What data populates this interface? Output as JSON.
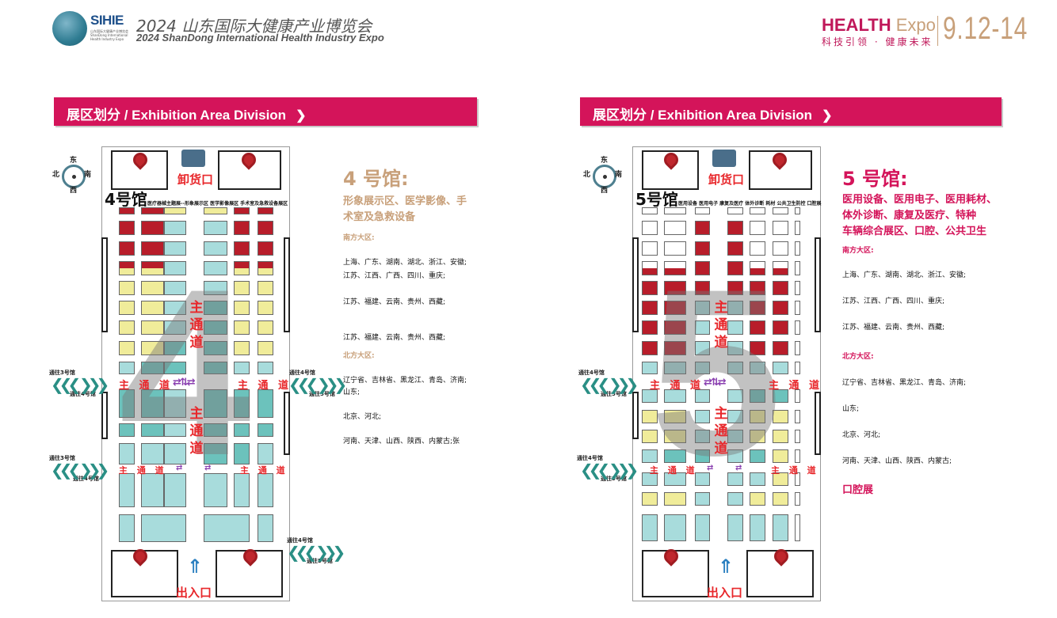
{
  "header": {
    "logo_text": "SIHIE",
    "logo_subtext": "山东国际大健康产业博览会 ShanDong International Health Industry Expo",
    "title_cn": "2024 山东国际大健康产业博览会",
    "title_en": "2024 ShanDong International Health Industry Expo",
    "brand_main": "HEALTH",
    "brand_expo": "Expo",
    "slogan": "科技引领 · 健康未来",
    "dates": "9.12-14"
  },
  "colors": {
    "accent": "#d4145a",
    "gold": "#c8a07a",
    "booth_red": "#b81d2a",
    "booth_yellow": "#f0ec9a",
    "booth_teal": "#a8dcdc",
    "booth_teal_dark": "#6cc2bc",
    "aisle_red": "#e8272b",
    "nav_green": "#2a8f85"
  },
  "banner": {
    "label": "展区划分 / Exhibition Area Division",
    "chevron_icon": "chevron-right-icon"
  },
  "compass": {
    "east": "东",
    "south": "南",
    "west": "西",
    "north": "北"
  },
  "labels": {
    "unloading": "卸货口",
    "entrance": "出入口",
    "main_aisle": "主通道",
    "main_aisle_spaced": "主 通 道",
    "to_hall3": "通往3号馆",
    "to_hall4": "通往4号馆",
    "to_hall5": "通往5号馆"
  },
  "hall4": {
    "plan_label": "4号馆",
    "numeral": "4",
    "zone_bar": "医疗器械主题展--形象展示区  医学影像展区  手术室及急救设备展区",
    "title": "4 号馆:",
    "subtitle_lines": [
      "形象展示区、医学影像、手",
      "术室及急救设备"
    ],
    "south_title": "南方大区:",
    "south_lines": [
      "上海、广东、湖南、湖北、浙江、安徽;",
      "江苏、江西、广西、四川、重庆;",
      "江苏、福建、云南、贵州、西藏;",
      "江苏、福建、云南、贵州、西藏;"
    ],
    "north_title": "北方大区:",
    "north_lines": [
      "辽宁省、吉林省、黑龙江、青岛、济南;",
      "山东;",
      "北京、河北;",
      "河南、天津、山西、陕西、内蒙古;张"
    ]
  },
  "hall5": {
    "plan_label": "5号馆",
    "numeral": "5",
    "zone_bar": "医用设备  医用电子  康复及医疗  体外诊断  耗材  公共卫生防控  口腔展",
    "title": "5 号馆:",
    "subtitle_lines": [
      "医用设备、医用电子、医用耗材、",
      "体外诊断、康复及医疗、特种",
      "车辆综合展区、口腔、公共卫生"
    ],
    "south_title": "南方大区:",
    "south_lines": [
      "上海、广东、湖南、湖北、浙江、安徽;",
      "江苏、江西、广西、四川、重庆;",
      "江苏、福建、云南、贵州、西藏;"
    ],
    "north_title": "北方大区:",
    "north_lines": [
      "辽宁省、吉林省、黑龙江、青岛、济南;",
      "山东;",
      "北京、河北;",
      "河南、天津、山西、陕西、内蒙古;"
    ],
    "extra": "口腔展"
  }
}
